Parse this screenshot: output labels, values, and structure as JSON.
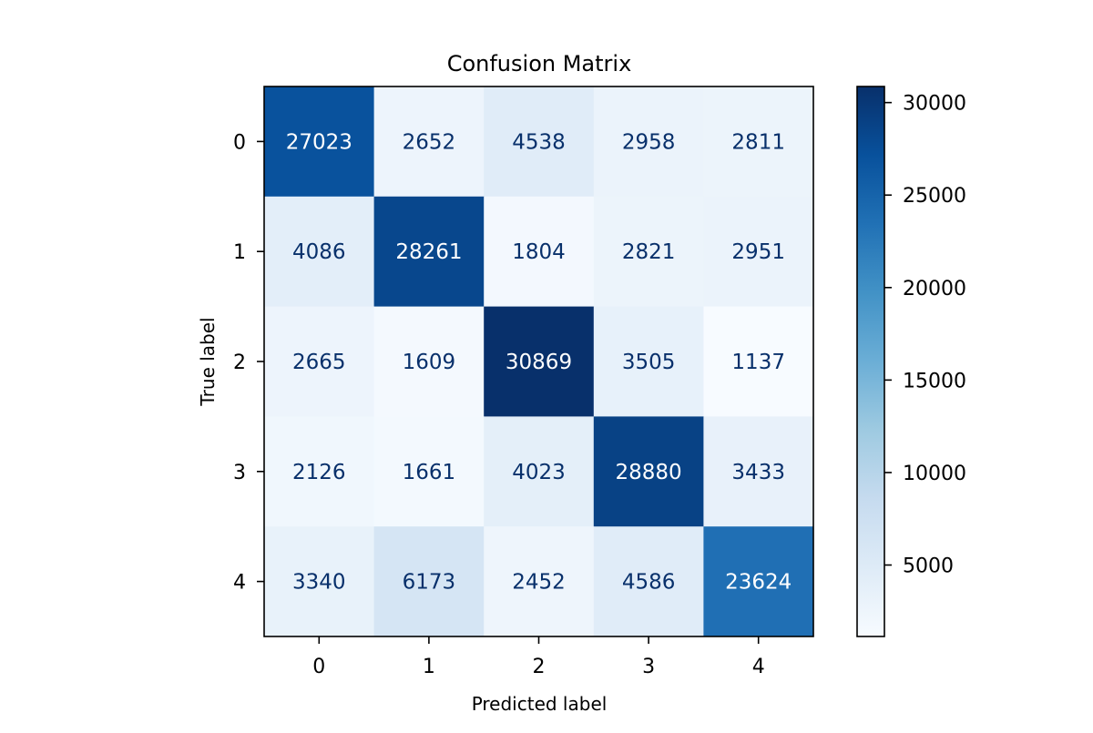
{
  "chart_data": {
    "type": "heatmap",
    "title": "Confusion Matrix",
    "xlabel": "Predicted label",
    "ylabel": "True label",
    "x_categories": [
      "0",
      "1",
      "2",
      "3",
      "4"
    ],
    "y_categories": [
      "0",
      "1",
      "2",
      "3",
      "4"
    ],
    "values": [
      [
        27023,
        2652,
        4538,
        2958,
        2811
      ],
      [
        4086,
        28261,
        1804,
        2821,
        2951
      ],
      [
        2665,
        1609,
        30869,
        3505,
        1137
      ],
      [
        2126,
        1661,
        4023,
        28880,
        3433
      ],
      [
        3340,
        6173,
        2452,
        4586,
        23624
      ]
    ],
    "colormap": "Blues",
    "color_range": [
      1137,
      30869
    ],
    "colorbar_ticks": [
      5000,
      10000,
      15000,
      20000,
      25000,
      30000
    ],
    "colorbar_tick_labels": [
      "5000",
      "10000",
      "15000",
      "20000",
      "25000",
      "30000"
    ],
    "text_colors": {
      "on_light": "#08306b",
      "on_dark": "#ffffff"
    }
  }
}
